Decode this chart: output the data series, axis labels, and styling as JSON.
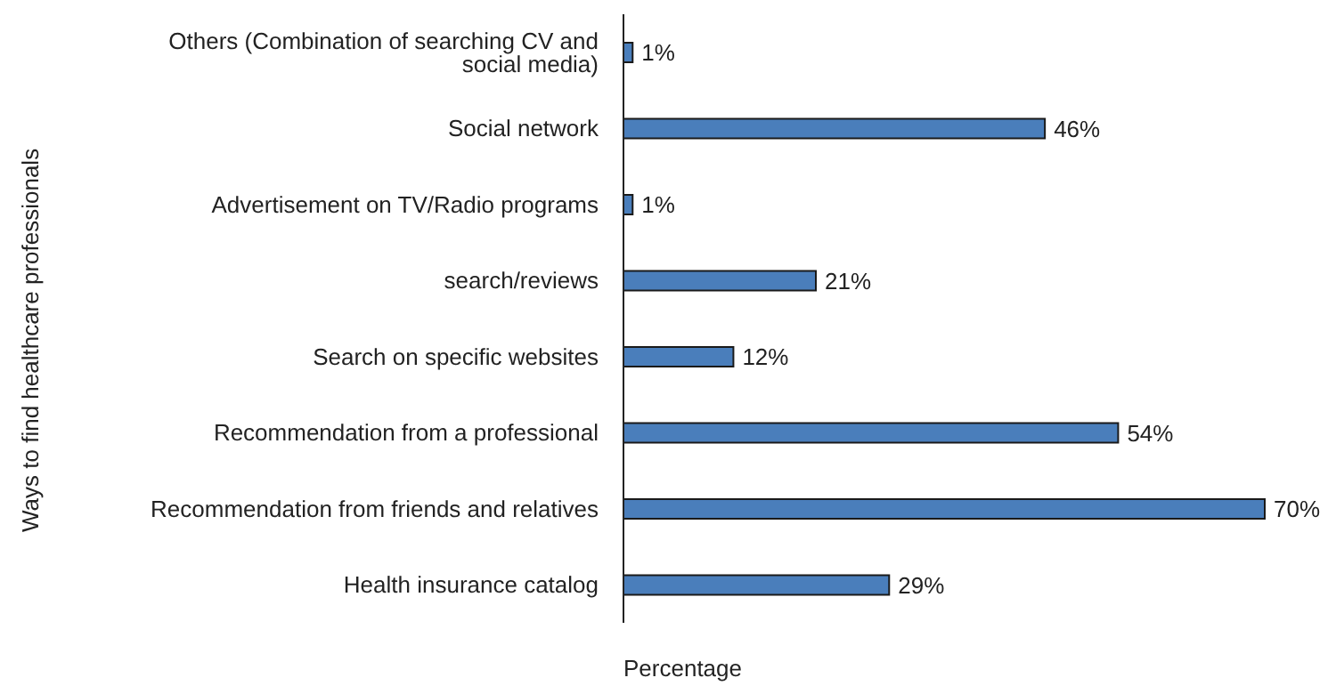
{
  "chart_data": {
    "type": "bar",
    "orientation": "horizontal",
    "xlabel": "Percentage",
    "ylabel": "Ways to find healthcare professionals",
    "categories": [
      "Others (Combination of searching CV and social media)",
      "Social network",
      "Advertisement on TV/Radio programs",
      "search/reviews",
      "Search on specific websites",
      "Recommendation from a professional",
      "Recommendation from friends and relatives",
      "Health insurance catalog"
    ],
    "values": [
      1,
      46,
      1,
      21,
      12,
      54,
      70,
      29
    ],
    "value_labels": [
      "1%",
      "46%",
      "1%",
      "21%",
      "12%",
      "54%",
      "70%",
      "29%"
    ],
    "color": "#4a7ebb"
  }
}
